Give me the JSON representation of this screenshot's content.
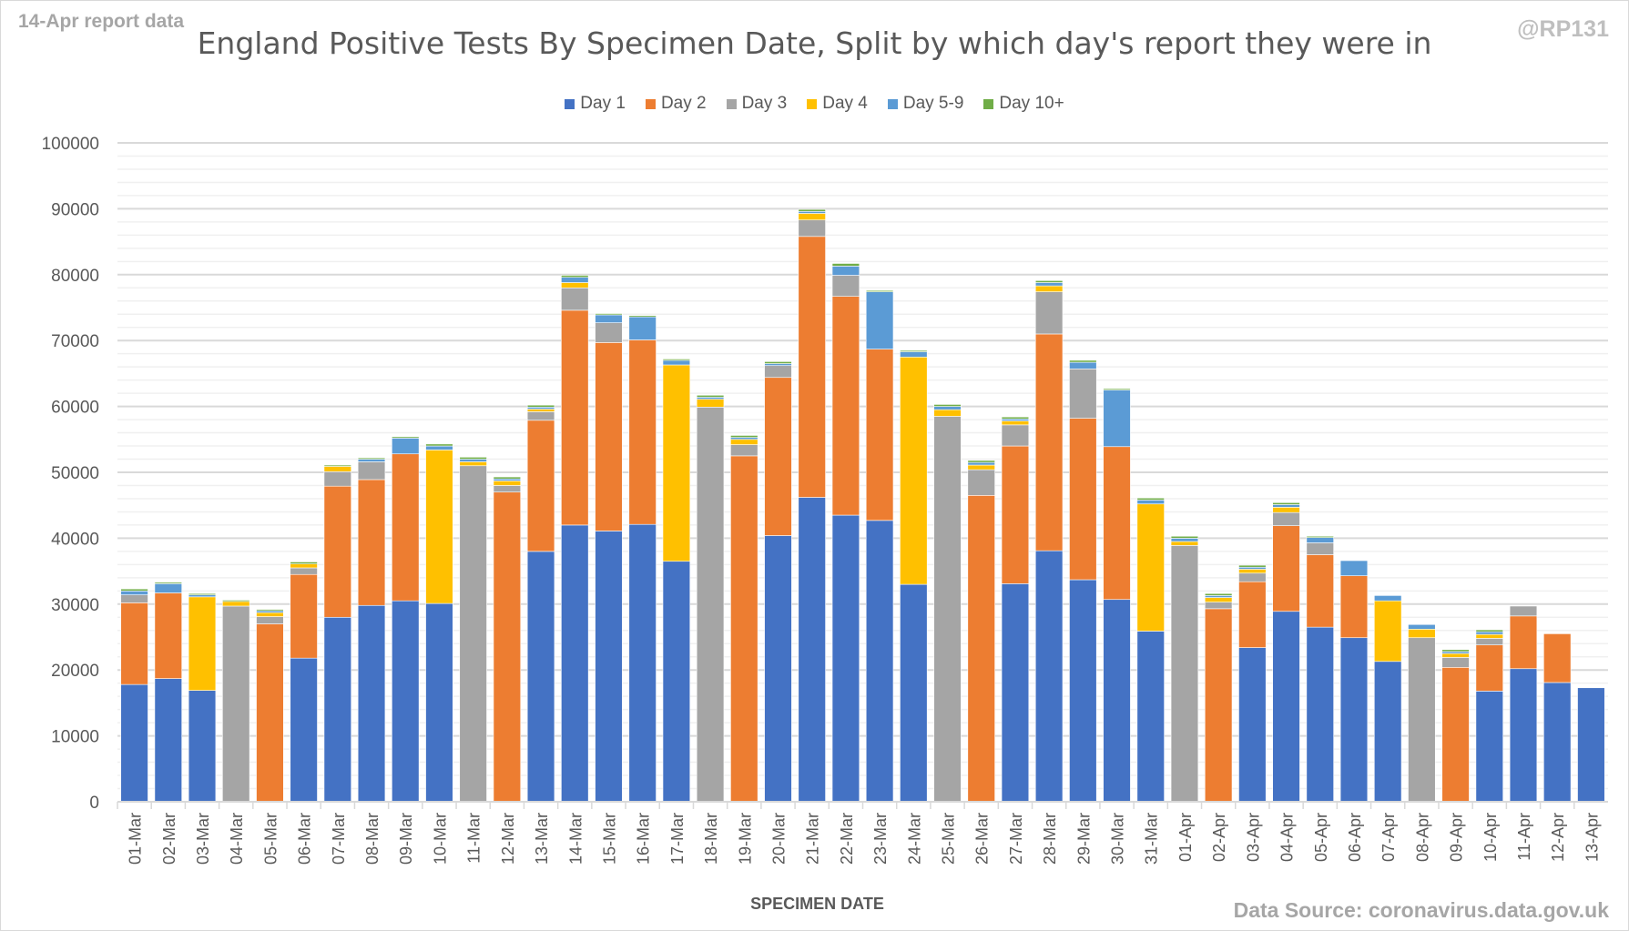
{
  "header": {
    "report_tag": "14-Apr report data",
    "credit": "@RP131",
    "source": "Data Source: coronavirus.data.gov.uk"
  },
  "chart_data": {
    "type": "bar",
    "stacked": true,
    "title": "England Positive Tests By Specimen Date, Split by which day's report they were in",
    "xlabel": "SPECIMEN DATE",
    "ylabel": "",
    "ylim": [
      0,
      100000
    ],
    "yticks": [
      0,
      10000,
      20000,
      30000,
      40000,
      50000,
      60000,
      70000,
      80000,
      90000,
      100000
    ],
    "grid": true,
    "legend_position": "top",
    "categories": [
      "01-Mar",
      "02-Mar",
      "03-Mar",
      "04-Mar",
      "05-Mar",
      "06-Mar",
      "07-Mar",
      "08-Mar",
      "09-Mar",
      "10-Mar",
      "11-Mar",
      "12-Mar",
      "13-Mar",
      "14-Mar",
      "15-Mar",
      "16-Mar",
      "17-Mar",
      "18-Mar",
      "19-Mar",
      "20-Mar",
      "21-Mar",
      "22-Mar",
      "23-Mar",
      "24-Mar",
      "25-Mar",
      "26-Mar",
      "27-Mar",
      "28-Mar",
      "29-Mar",
      "30-Mar",
      "31-Mar",
      "01-Apr",
      "02-Apr",
      "03-Apr",
      "04-Apr",
      "05-Apr",
      "06-Apr",
      "07-Apr",
      "08-Apr",
      "09-Apr",
      "10-Apr",
      "11-Apr",
      "12-Apr",
      "13-Apr"
    ],
    "series": [
      {
        "name": "Day 1",
        "color": "#4472c4",
        "values": [
          17800,
          18700,
          16900,
          0,
          0,
          21800,
          28000,
          29800,
          30500,
          30100,
          0,
          0,
          38000,
          42000,
          41100,
          42100,
          36500,
          0,
          0,
          40400,
          46200,
          43500,
          42700,
          33000,
          0,
          0,
          33100,
          38100,
          33700,
          30700,
          25900,
          0,
          0,
          23400,
          28900,
          26500,
          24900,
          21300,
          0,
          0,
          16800,
          20200,
          18100,
          17300
        ]
      },
      {
        "name": "Day 2",
        "color": "#ed7d31",
        "values": [
          12400,
          13000,
          0,
          0,
          27000,
          12700,
          19900,
          19100,
          22300,
          0,
          0,
          47000,
          19900,
          32600,
          28600,
          28000,
          0,
          0,
          52500,
          24000,
          39600,
          33200,
          26000,
          0,
          0,
          46500,
          20900,
          32900,
          24500,
          23200,
          0,
          0,
          29300,
          10000,
          13000,
          11000,
          9400,
          0,
          0,
          20400,
          7000,
          8000,
          7400,
          0
        ]
      },
      {
        "name": "Day 3",
        "color": "#a5a5a5",
        "values": [
          1200,
          0,
          0,
          29700,
          1100,
          1000,
          2200,
          2700,
          0,
          0,
          51000,
          1000,
          1300,
          3400,
          3000,
          0,
          0,
          59900,
          1700,
          1800,
          2500,
          3200,
          0,
          0,
          58500,
          3900,
          3200,
          6400,
          7500,
          0,
          0,
          38900,
          1000,
          1300,
          2000,
          1800,
          0,
          0,
          24900,
          1500,
          1000,
          1500,
          0,
          0
        ]
      },
      {
        "name": "Day 4",
        "color": "#ffc000",
        "values": [
          0,
          0,
          14200,
          700,
          600,
          600,
          800,
          0,
          0,
          23300,
          600,
          700,
          400,
          800,
          0,
          0,
          29800,
          1200,
          800,
          0,
          1000,
          0,
          0,
          34500,
          1000,
          700,
          600,
          900,
          0,
          0,
          19300,
          600,
          700,
          600,
          800,
          0,
          0,
          9200,
          1300,
          600,
          600,
          0,
          0,
          0
        ]
      },
      {
        "name": "Day 5-9",
        "color": "#5b9bd5",
        "values": [
          600,
          1400,
          300,
          0,
          300,
          0,
          0,
          400,
          2400,
          600,
          400,
          300,
          300,
          800,
          1200,
          3500,
          700,
          300,
          300,
          300,
          300,
          1400,
          8700,
          800,
          500,
          400,
          300,
          500,
          1000,
          8600,
          600,
          500,
          300,
          300,
          400,
          800,
          2300,
          800,
          700,
          300,
          400,
          0,
          0,
          0
        ]
      },
      {
        "name": "Day 10+",
        "color": "#70ad47",
        "values": [
          300,
          200,
          200,
          200,
          200,
          300,
          200,
          200,
          200,
          300,
          300,
          300,
          300,
          300,
          200,
          200,
          200,
          300,
          300,
          300,
          300,
          400,
          200,
          200,
          300,
          300,
          300,
          300,
          300,
          200,
          300,
          300,
          300,
          300,
          300,
          200,
          0,
          0,
          0,
          300,
          300,
          0,
          0,
          0
        ]
      }
    ]
  }
}
